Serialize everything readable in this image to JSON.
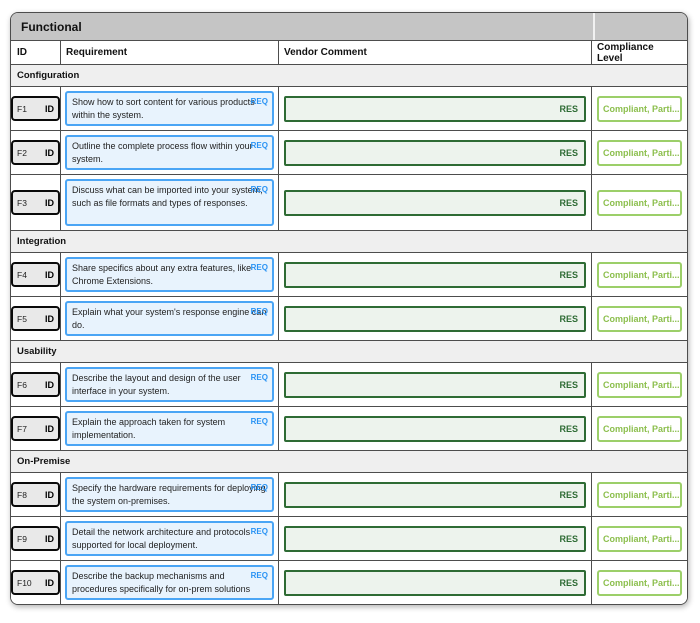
{
  "table": {
    "title": "Functional",
    "columns": [
      "ID",
      "Requirement",
      "Vendor Comment",
      "Compliance Level"
    ],
    "badges": {
      "id": "ID",
      "req": "REQ",
      "res": "RES"
    },
    "colors": {
      "title_bar_bg": "#c5c5c5",
      "section_bg": "#efefef",
      "grid_line": "#4d4d4d",
      "requirement_border": "#4aa5f5",
      "requirement_bg": "#e8f3fd",
      "req_badge_text": "#2a93f4",
      "vendor_border": "#2e6b34",
      "vendor_bg": "#edf3ed",
      "compliance_border": "#9ccf69",
      "compliance_text": "#8cbf4d"
    },
    "sections": [
      {
        "title": "Configuration",
        "rows": [
          {
            "id": "F1",
            "requirement": "Show how to sort content for various products within the system.",
            "vendor_comment": "",
            "compliance": "Compliant, Parti..."
          },
          {
            "id": "F2",
            "requirement": "Outline the complete process flow within your system.",
            "vendor_comment": "",
            "compliance": "Compliant, Parti..."
          },
          {
            "id": "F3",
            "requirement": "Discuss what can be imported into your system, such as file formats and types of responses.",
            "vendor_comment": "",
            "compliance": "Compliant, Parti..."
          }
        ]
      },
      {
        "title": "Integration",
        "rows": [
          {
            "id": "F4",
            "requirement": "Share specifics about any extra features, like Chrome Extensions.",
            "vendor_comment": "",
            "compliance": "Compliant, Parti..."
          },
          {
            "id": "F5",
            "requirement": "Explain what your system's response engine can do.",
            "vendor_comment": "",
            "compliance": "Compliant, Parti..."
          }
        ]
      },
      {
        "title": "Usability",
        "rows": [
          {
            "id": "F6",
            "requirement": "Describe the layout and design of the user interface in your system.",
            "vendor_comment": "",
            "compliance": "Compliant, Parti..."
          },
          {
            "id": "F7",
            "requirement": "Explain the approach taken for system implementation.",
            "vendor_comment": "",
            "compliance": "Compliant, Parti..."
          }
        ]
      },
      {
        "title": "On-Premise",
        "rows": [
          {
            "id": "F8",
            "requirement": "Specify the hardware requirements for deploying the system on-premises.",
            "vendor_comment": "",
            "compliance": "Compliant, Parti..."
          },
          {
            "id": "F9",
            "requirement": "Detail the network architecture and protocols supported for local deployment.",
            "vendor_comment": "",
            "compliance": "Compliant, Parti..."
          },
          {
            "id": "F10",
            "requirement": "Describe the backup mechanisms and procedures specifically for on-prem solutions",
            "vendor_comment": "",
            "compliance": "Compliant, Parti..."
          }
        ]
      }
    ]
  }
}
